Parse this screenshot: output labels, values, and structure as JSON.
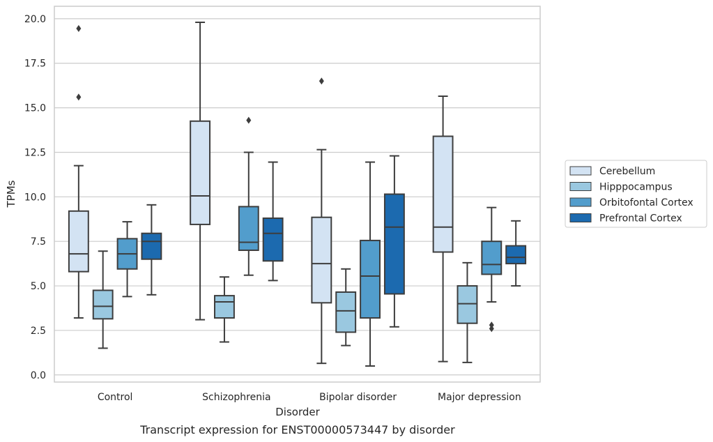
{
  "chart_data": {
    "type": "box",
    "caption": "Transcript expression for ENST00000573447 by disorder",
    "xlabel": "Disorder",
    "ylabel": "TPMs",
    "ylim": [
      -0.4,
      20.7
    ],
    "yticks": [
      0.0,
      2.5,
      5.0,
      7.5,
      10.0,
      12.5,
      15.0,
      17.5,
      20.0
    ],
    "ytick_labels": [
      "0.0",
      "2.5",
      "5.0",
      "7.5",
      "10.0",
      "12.5",
      "15.0",
      "17.5",
      "20.0"
    ],
    "grid": "horizontal",
    "legend_position": "right",
    "categories": [
      "Control",
      "Schizophrenia",
      "Bipolar disorder",
      "Major depression"
    ],
    "series": [
      {
        "name": "Cerebellum",
        "color": "#d3e3f3",
        "boxes": [
          {
            "whislo": 3.2,
            "q1": 5.8,
            "med": 6.8,
            "q3": 9.2,
            "whishi": 11.75,
            "fliers": [
              15.6,
              19.45
            ]
          },
          {
            "whislo": 3.1,
            "q1": 8.45,
            "med": 10.05,
            "q3": 14.25,
            "whishi": 19.8,
            "fliers": []
          },
          {
            "whislo": 0.65,
            "q1": 4.05,
            "med": 6.25,
            "q3": 8.85,
            "whishi": 12.65,
            "fliers": [
              16.5
            ]
          },
          {
            "whislo": 0.75,
            "q1": 6.9,
            "med": 8.3,
            "q3": 13.4,
            "whishi": 15.65,
            "fliers": []
          }
        ]
      },
      {
        "name": "Hipppocampus",
        "color": "#9ac8e0",
        "boxes": [
          {
            "whislo": 1.5,
            "q1": 3.15,
            "med": 3.85,
            "q3": 4.75,
            "whishi": 6.95,
            "fliers": []
          },
          {
            "whislo": 1.85,
            "q1": 3.2,
            "med": 4.1,
            "q3": 4.45,
            "whishi": 5.5,
            "fliers": []
          },
          {
            "whislo": 1.65,
            "q1": 2.4,
            "med": 3.6,
            "q3": 4.65,
            "whishi": 5.95,
            "fliers": []
          },
          {
            "whislo": 0.7,
            "q1": 2.9,
            "med": 4.0,
            "q3": 5.0,
            "whishi": 6.3,
            "fliers": []
          }
        ]
      },
      {
        "name": "Orbitofontal Cortex",
        "color": "#529dcc",
        "boxes": [
          {
            "whislo": 4.4,
            "q1": 5.95,
            "med": 6.8,
            "q3": 7.65,
            "whishi": 8.6,
            "fliers": []
          },
          {
            "whislo": 5.6,
            "q1": 7.0,
            "med": 7.45,
            "q3": 9.45,
            "whishi": 12.5,
            "fliers": [
              14.3
            ]
          },
          {
            "whislo": 0.5,
            "q1": 3.2,
            "med": 5.55,
            "q3": 7.55,
            "whishi": 11.95,
            "fliers": []
          },
          {
            "whislo": 4.1,
            "q1": 5.65,
            "med": 6.2,
            "q3": 7.5,
            "whishi": 9.4,
            "fliers": [
              2.6,
              2.8
            ]
          }
        ]
      },
      {
        "name": "Prefrontal Cortex",
        "color": "#1c6aaf",
        "boxes": [
          {
            "whislo": 4.5,
            "q1": 6.5,
            "med": 7.5,
            "q3": 7.95,
            "whishi": 9.55,
            "fliers": []
          },
          {
            "whislo": 5.3,
            "q1": 6.4,
            "med": 7.95,
            "q3": 8.8,
            "whishi": 11.95,
            "fliers": []
          },
          {
            "whislo": 2.7,
            "q1": 4.55,
            "med": 8.3,
            "q3": 10.15,
            "whishi": 12.3,
            "fliers": []
          },
          {
            "whislo": 5.0,
            "q1": 6.25,
            "med": 6.6,
            "q3": 7.25,
            "whishi": 8.65,
            "fliers": []
          }
        ]
      }
    ]
  }
}
